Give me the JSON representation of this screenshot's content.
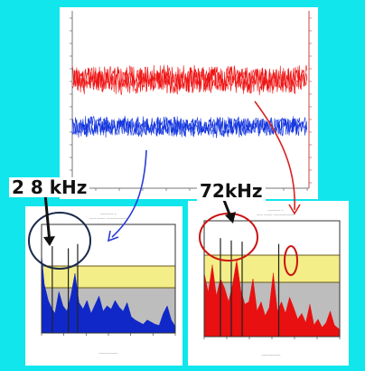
{
  "annotations": {
    "left_peak": "2 8 kHz",
    "right_peak": "72kHz"
  },
  "colors": {
    "background": "#10e6ec",
    "ch1": "#ee1111",
    "ch2": "#1133dd",
    "spectrum_left": "#1028c8",
    "spectrum_right": "#e81010",
    "band_yellow": "#f4ee88",
    "band_gray": "#bdbdbd",
    "arrow_blue": "#2a3bd6",
    "arrow_red": "#d82020"
  },
  "chart_data": [
    {
      "type": "line",
      "series": [
        {
          "name": "",
          "color": "#ee1111",
          "mean": 88,
          "amplitude": 18
        },
        {
          "name": "",
          "color": "#1133dd",
          "mean": 140,
          "amplitude": 13
        }
      ]
    },
    {
      "type": "area",
      "color": "#1028c8",
      "x": [
        0,
        0.02,
        0.05,
        0.08,
        0.1,
        0.13,
        0.16,
        0.19,
        0.22,
        0.25,
        0.28,
        0.31,
        0.34,
        0.37,
        0.4,
        0.43,
        0.46,
        0.49,
        0.52,
        0.55,
        0.58,
        0.61,
        0.64,
        0.67,
        0.7,
        0.73,
        0.76,
        0.79,
        0.82,
        0.85,
        0.88,
        0.91,
        0.94,
        0.97,
        1.0
      ],
      "values": [
        0.72,
        0.45,
        0.3,
        0.22,
        0.18,
        0.38,
        0.25,
        0.2,
        0.35,
        0.55,
        0.28,
        0.22,
        0.3,
        0.18,
        0.26,
        0.34,
        0.2,
        0.25,
        0.22,
        0.3,
        0.24,
        0.2,
        0.28,
        0.15,
        0.12,
        0.1,
        0.08,
        0.12,
        0.1,
        0.08,
        0.07,
        0.18,
        0.25,
        0.12,
        0.06
      ],
      "spikes": [
        {
          "x": 0.08,
          "value": 0.8
        },
        {
          "x": 0.2,
          "value": 0.78
        },
        {
          "x": 0.27,
          "value": 0.82
        }
      ]
    },
    {
      "type": "area",
      "color": "#e81010",
      "x": [
        0,
        0.03,
        0.06,
        0.09,
        0.12,
        0.15,
        0.18,
        0.21,
        0.24,
        0.27,
        0.3,
        0.33,
        0.36,
        0.39,
        0.42,
        0.45,
        0.48,
        0.51,
        0.54,
        0.57,
        0.6,
        0.63,
        0.66,
        0.69,
        0.72,
        0.75,
        0.78,
        0.81,
        0.84,
        0.87,
        0.9,
        0.93,
        0.96,
        1.0
      ],
      "values": [
        0.55,
        0.38,
        0.62,
        0.35,
        0.5,
        0.42,
        0.3,
        0.45,
        0.66,
        0.4,
        0.28,
        0.3,
        0.5,
        0.22,
        0.3,
        0.18,
        0.25,
        0.55,
        0.22,
        0.3,
        0.2,
        0.34,
        0.25,
        0.15,
        0.2,
        0.12,
        0.28,
        0.1,
        0.15,
        0.08,
        0.12,
        0.22,
        0.1,
        0.06
      ],
      "spikes": [
        {
          "x": 0.12,
          "value": 0.85
        },
        {
          "x": 0.2,
          "value": 0.83
        },
        {
          "x": 0.28,
          "value": 0.82
        },
        {
          "x": 0.55,
          "value": 0.8
        }
      ]
    }
  ]
}
